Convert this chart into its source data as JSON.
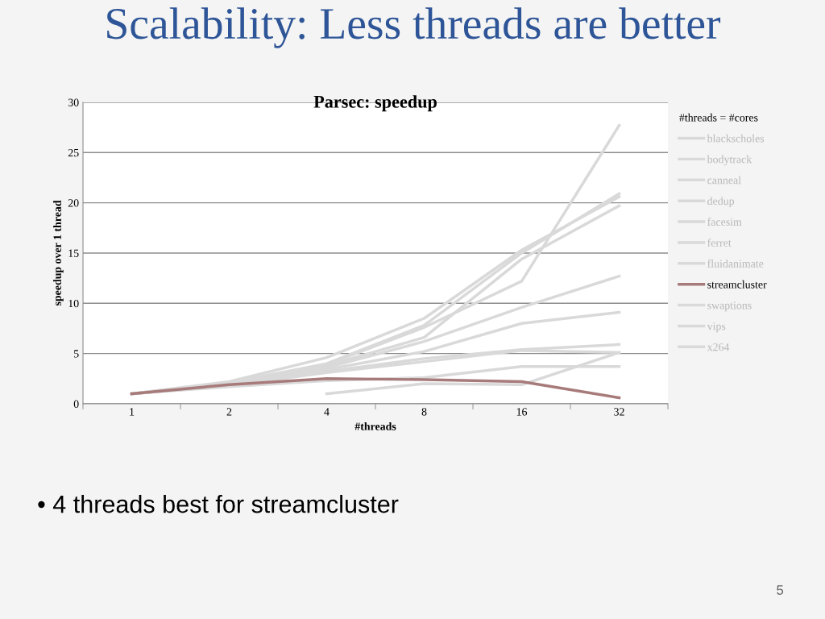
{
  "chart_data": {
    "type": "line",
    "title": "Scalability: Less threads are better",
    "subtitle": "Parsec: speedup",
    "xlabel": "#threads",
    "ylabel": "speedup over 1 thread",
    "legend_title": "#threads = #cores",
    "categories": [
      "1",
      "2",
      "4",
      "8",
      "16",
      "32"
    ],
    "series": [
      {
        "name": "blackscholes",
        "color": "#d9d9d9",
        "values": [
          1,
          2.2,
          4.6,
          8.5,
          15.3,
          20.6
        ]
      },
      {
        "name": "bodytrack",
        "color": "#d9d9d9",
        "values": [
          1,
          2.1,
          4.0,
          7.8,
          15.0,
          20.9
        ]
      },
      {
        "name": "canneal",
        "color": "#d9d9d9",
        "values": [
          1,
          1.7,
          2.3,
          2.6,
          3.7,
          3.7
        ]
      },
      {
        "name": "dedup",
        "color": "#d9d9d9",
        "values": [
          1,
          1.8,
          3.2,
          4.5,
          5.4,
          5.9
        ]
      },
      {
        "name": "facesim",
        "color": "#d9d9d9",
        "values": [
          1,
          1.9,
          3.6,
          6.2,
          9.6,
          12.7
        ]
      },
      {
        "name": "ferret",
        "color": "#d9d9d9",
        "values": [
          1,
          1.8,
          3.4,
          5.2,
          8.0,
          9.1
        ]
      },
      {
        "name": "fluidanimate",
        "color": "#d9d9d9",
        "values": [
          1,
          1.9,
          3.8,
          6.6,
          14.4,
          19.7
        ]
      },
      {
        "name": "streamcluster",
        "color": "#a87b7b",
        "values": [
          1,
          1.9,
          2.5,
          2.4,
          2.2,
          0.6
        ]
      },
      {
        "name": "swaptions",
        "color": "#d9d9d9",
        "values": [
          1,
          2.0,
          3.9,
          7.6,
          12.2,
          27.7
        ]
      },
      {
        "name": "vips",
        "color": "#d9d9d9",
        "values": [
          1,
          1.8,
          3.1,
          4.2,
          5.3,
          5.1
        ]
      },
      {
        "name": "x264",
        "color": "#d9d9d9",
        "values": [
          null,
          null,
          1.0,
          2.0,
          1.9,
          5.1
        ]
      }
    ],
    "ylim": [
      0,
      30
    ],
    "yticks": [
      0,
      5,
      10,
      15,
      20,
      25,
      30
    ],
    "grid": "y",
    "legend": "right",
    "marker": "none",
    "line_style": "solid",
    "annotations": [
      "• 4 threads best for streamcluster",
      "5"
    ]
  }
}
